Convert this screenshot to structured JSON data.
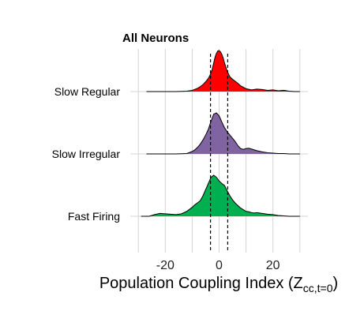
{
  "chart_data": {
    "type": "area",
    "subtype": "ridgeline-density",
    "title": "All Neurons",
    "xlabel": {
      "main": "Population Coupling Index (Z",
      "sub": "cc,t=0",
      "close": ")"
    },
    "xlim": [
      -33.0,
      33.0
    ],
    "xticks": [
      -20,
      0,
      20
    ],
    "x_tick_labels": [
      "-20",
      "0",
      "20"
    ],
    "grid": true,
    "vlines": [
      -3.2,
      3.2
    ],
    "series": [
      {
        "name": "Slow Regular",
        "color": "#ff0000",
        "x": [
          -27,
          -25,
          -20,
          -16,
          -12,
          -10,
          -8,
          -7,
          -6,
          -5,
          -4,
          -3,
          -2.5,
          -2,
          -1.5,
          -1,
          -0.5,
          0,
          0.5,
          1,
          1.5,
          2,
          3,
          4,
          5,
          6,
          7,
          8,
          10,
          12,
          14,
          16,
          18,
          20,
          22,
          24,
          26,
          28,
          30
        ],
        "density": [
          0.0,
          0.0,
          0.0,
          0.0,
          0.01,
          0.03,
          0.08,
          0.12,
          0.17,
          0.24,
          0.32,
          0.45,
          0.56,
          0.7,
          0.84,
          0.93,
          0.99,
          1.0,
          0.97,
          0.91,
          0.82,
          0.7,
          0.5,
          0.36,
          0.3,
          0.25,
          0.2,
          0.14,
          0.07,
          0.04,
          0.06,
          0.05,
          0.03,
          0.04,
          0.02,
          0.03,
          0.01,
          0.0,
          0.0
        ]
      },
      {
        "name": "Slow Irregular",
        "color": "#8064a2",
        "x": [
          -27,
          -24,
          -20,
          -16,
          -12,
          -10,
          -9,
          -8,
          -7,
          -6,
          -5,
          -4,
          -3,
          -2,
          -1,
          0,
          1,
          2,
          3,
          4,
          5,
          6,
          7,
          8,
          9,
          10,
          11,
          12,
          14,
          16,
          18,
          20,
          22,
          24,
          26,
          28,
          30
        ],
        "density": [
          0.0,
          0.0,
          0.0,
          0.0,
          0.01,
          0.06,
          0.1,
          0.16,
          0.24,
          0.34,
          0.46,
          0.6,
          0.8,
          0.97,
          1.0,
          0.93,
          0.78,
          0.64,
          0.54,
          0.46,
          0.38,
          0.3,
          0.2,
          0.13,
          0.11,
          0.13,
          0.14,
          0.12,
          0.08,
          0.05,
          0.03,
          0.02,
          0.01,
          0.01,
          0.0,
          0.0,
          0.0
        ]
      },
      {
        "name": "Fast Firing",
        "color": "#00b050",
        "x": [
          -29,
          -26,
          -24,
          -22,
          -20,
          -18,
          -16,
          -14,
          -12,
          -10,
          -9,
          -8,
          -7,
          -6,
          -5,
          -4,
          -3,
          -2,
          -1,
          0,
          1,
          2,
          3,
          4,
          5,
          6,
          7,
          8,
          9,
          10,
          11,
          12,
          13,
          14,
          16,
          18,
          20,
          22,
          24,
          26,
          28,
          30
        ],
        "density": [
          0.0,
          0.0,
          0.04,
          0.07,
          0.06,
          0.05,
          0.04,
          0.06,
          0.12,
          0.22,
          0.28,
          0.33,
          0.38,
          0.5,
          0.65,
          0.8,
          0.95,
          1.0,
          0.95,
          0.86,
          0.8,
          0.75,
          0.62,
          0.5,
          0.4,
          0.32,
          0.26,
          0.2,
          0.16,
          0.12,
          0.11,
          0.09,
          0.08,
          0.09,
          0.07,
          0.05,
          0.04,
          0.02,
          0.01,
          0.0,
          0.0,
          0.0
        ]
      }
    ]
  }
}
